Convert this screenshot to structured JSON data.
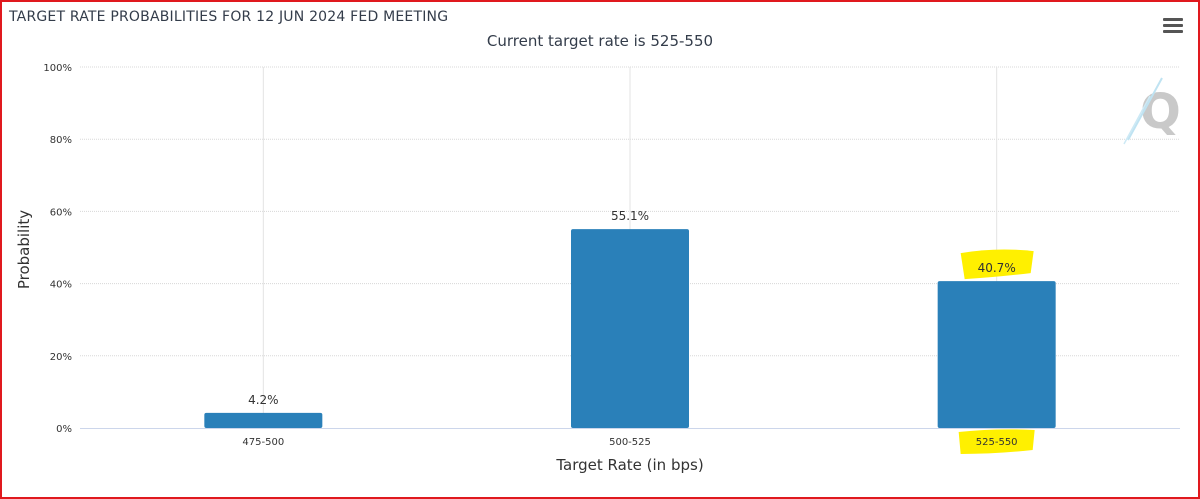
{
  "chart": {
    "title": "TARGET RATE PROBABILITIES FOR 12 JUN 2024 FED MEETING",
    "subtitle": "Current target rate is 525-550",
    "menu_icon": "hamburger-menu-icon",
    "watermark_icon": "q-logo-icon",
    "highlight_color": "#fff000"
  },
  "chart_data": {
    "type": "bar",
    "title": "TARGET RATE PROBABILITIES FOR 12 JUN 2024 FED MEETING",
    "subtitle": "Current target rate is 525-550",
    "xlabel": "Target Rate (in bps)",
    "ylabel": "Probability",
    "categories": [
      "475-500",
      "500-525",
      "525-550"
    ],
    "values": [
      4.2,
      55.1,
      40.7
    ],
    "data_labels": [
      "4.2%",
      "55.1%",
      "40.7%"
    ],
    "ylim": [
      0,
      100
    ],
    "yticks": [
      "0%",
      "20%",
      "40%",
      "60%",
      "80%",
      "100%"
    ],
    "ytick_values": [
      0,
      20,
      40,
      60,
      80,
      100
    ],
    "grid": true,
    "bar_color": "#2a80b9",
    "highlighted_category": "525-550"
  }
}
